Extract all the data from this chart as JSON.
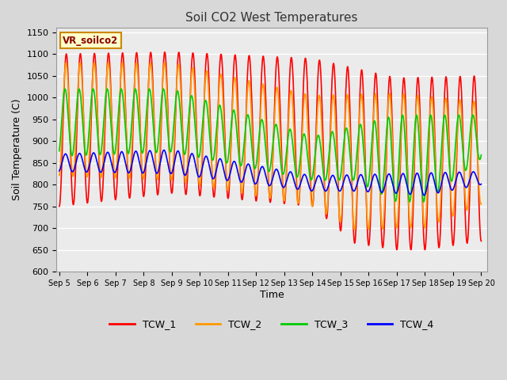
{
  "title": "Soil CO2 West Temperatures",
  "xlabel": "Time",
  "ylabel": "Soil Temperature (C)",
  "ylim": [
    600,
    1160
  ],
  "yticks": [
    600,
    650,
    700,
    750,
    800,
    850,
    900,
    950,
    1000,
    1050,
    1100,
    1150
  ],
  "annotation_text": "VR_soilco2",
  "bg_color": "#d8d8d8",
  "plot_bg_color": "#ebebeb",
  "grid_color": "#ffffff",
  "line_colors": {
    "TCW_1": "#ff0000",
    "TCW_2": "#ff9900",
    "TCW_3": "#00cc00",
    "TCW_4": "#0000ff"
  },
  "x_labels": [
    "Sep 5",
    "Sep 6",
    "Sep 7",
    "Sep 8",
    "Sep 9",
    "Sep 10",
    "Sep 11",
    "Sep 12",
    "Sep 13",
    "Sep 14",
    "Sep 15",
    "Sep 16",
    "Sep 17",
    "Sep 18",
    "Sep 19",
    "Sep 20"
  ]
}
